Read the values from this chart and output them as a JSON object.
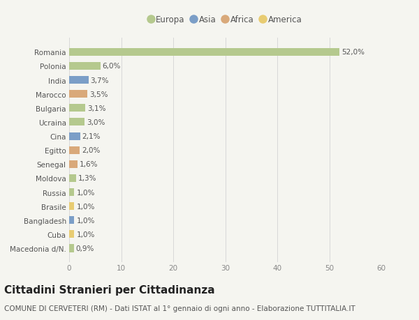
{
  "countries": [
    "Romania",
    "Polonia",
    "India",
    "Marocco",
    "Bulgaria",
    "Ucraina",
    "Cina",
    "Egitto",
    "Senegal",
    "Moldova",
    "Russia",
    "Brasile",
    "Bangladesh",
    "Cuba",
    "Macedonia d/N."
  ],
  "values": [
    52.0,
    6.0,
    3.7,
    3.5,
    3.1,
    3.0,
    2.1,
    2.0,
    1.6,
    1.3,
    1.0,
    1.0,
    1.0,
    1.0,
    0.9
  ],
  "labels": [
    "52,0%",
    "6,0%",
    "3,7%",
    "3,5%",
    "3,1%",
    "3,0%",
    "2,1%",
    "2,0%",
    "1,6%",
    "1,3%",
    "1,0%",
    "1,0%",
    "1,0%",
    "1,0%",
    "0,9%"
  ],
  "continents": [
    "Europa",
    "Europa",
    "Asia",
    "Africa",
    "Europa",
    "Europa",
    "Asia",
    "Africa",
    "Africa",
    "Europa",
    "Europa",
    "America",
    "Asia",
    "America",
    "Europa"
  ],
  "continent_colors": {
    "Europa": "#b5c98e",
    "Asia": "#7b9ec7",
    "Africa": "#d9a97a",
    "America": "#e8cc72"
  },
  "legend_order": [
    "Europa",
    "Asia",
    "Africa",
    "America"
  ],
  "xlim": [
    0,
    60
  ],
  "xticks": [
    0,
    10,
    20,
    30,
    40,
    50,
    60
  ],
  "background_color": "#f5f5f0",
  "title": "Cittadini Stranieri per Cittadinanza",
  "subtitle": "COMUNE DI CERVETERI (RM) - Dati ISTAT al 1° gennaio di ogni anno - Elaborazione TUTTITALIA.IT",
  "title_fontsize": 11,
  "subtitle_fontsize": 7.5,
  "label_fontsize": 7.5,
  "tick_fontsize": 7.5,
  "legend_fontsize": 8.5,
  "bar_height": 0.55
}
